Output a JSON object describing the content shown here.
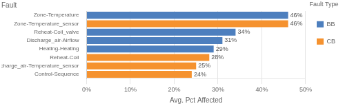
{
  "chart_data": {
    "type": "bar",
    "orientation": "horizontal",
    "title": "Fault",
    "xlabel": "Avg. Pct Affected",
    "legend_title": "Fault Type",
    "categories": [
      "Zone-Temperature",
      "Zone-Temperature_sensor",
      "Reheat-Coil_valve",
      "Discharge_air-Airflow",
      "Heating-Heating",
      "Reheat-Coil",
      "Discharge_air-Temperature_sensor",
      "Control-Sequence"
    ],
    "series": [
      {
        "name": "BB",
        "color": "#4d7fbe",
        "values": [
          46,
          null,
          34,
          31,
          29,
          null,
          null,
          null
        ],
        "value_labels": [
          "46%",
          null,
          "34%",
          "31%",
          "29%",
          null,
          null,
          null
        ]
      },
      {
        "name": "CB",
        "color": "#f5922f",
        "values": [
          null,
          46,
          null,
          null,
          null,
          28,
          25,
          24
        ],
        "value_labels": [
          null,
          "46%",
          null,
          null,
          null,
          "28%",
          "25%",
          "24%"
        ]
      }
    ],
    "xlim": [
      0,
      50
    ],
    "xticks": [
      {
        "value": 0,
        "label": "0%"
      },
      {
        "value": 10,
        "label": "10%"
      },
      {
        "value": 20,
        "label": "20%"
      },
      {
        "value": 30,
        "label": "30%"
      },
      {
        "value": 40,
        "label": "40%"
      },
      {
        "value": 50,
        "label": "50%"
      }
    ],
    "grid": true,
    "legend": "right",
    "data_labels": true
  }
}
